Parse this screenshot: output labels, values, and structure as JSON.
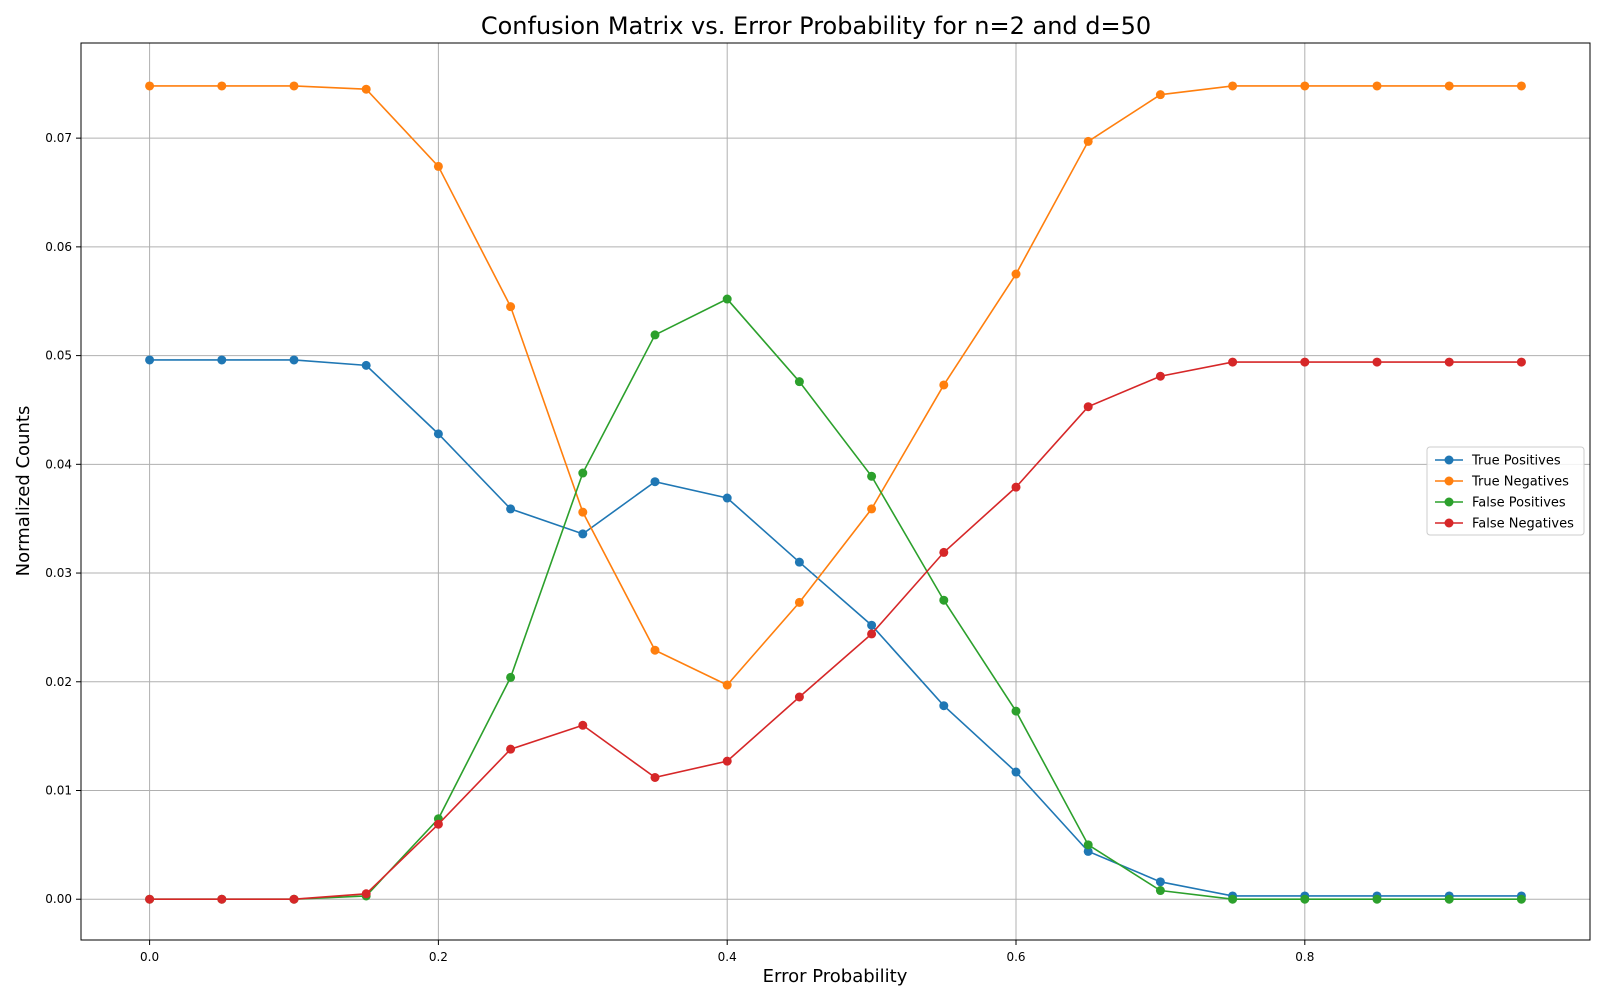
{
  "chart_data": {
    "type": "line",
    "title": "Confusion Matrix vs. Error Probability for n=2 and d=50",
    "xlabel": "Error Probability",
    "ylabel": "Normalized Counts",
    "xlim": [
      -0.0475,
      0.9975
    ],
    "ylim": [
      -0.00375,
      0.07875
    ],
    "xticks": [
      0.0,
      0.2,
      0.4,
      0.6,
      0.8
    ],
    "xtick_labels": [
      "0.0",
      "0.2",
      "0.4",
      "0.6",
      "0.8"
    ],
    "yticks": [
      0.0,
      0.01,
      0.02,
      0.03,
      0.04,
      0.05,
      0.06,
      0.07
    ],
    "ytick_labels": [
      "0.00",
      "0.01",
      "0.02",
      "0.03",
      "0.04",
      "0.05",
      "0.06",
      "0.07"
    ],
    "grid": true,
    "legend_position": "center-right",
    "x": [
      0.0,
      0.05,
      0.1,
      0.15,
      0.2,
      0.25,
      0.3,
      0.35,
      0.4,
      0.45,
      0.5,
      0.55,
      0.6,
      0.65,
      0.7,
      0.75,
      0.8,
      0.85,
      0.9,
      0.95
    ],
    "series": [
      {
        "name": "True Positives",
        "color": "#1f77b4",
        "values": [
          0.0496,
          0.0496,
          0.0496,
          0.0491,
          0.0428,
          0.0359,
          0.0336,
          0.0384,
          0.0369,
          0.031,
          0.0252,
          0.0178,
          0.0117,
          0.0044,
          0.0016,
          0.0003,
          0.0003,
          0.0003,
          0.0003,
          0.0003
        ]
      },
      {
        "name": "True Negatives",
        "color": "#ff7f0e",
        "values": [
          0.0748,
          0.0748,
          0.0748,
          0.0745,
          0.0674,
          0.0545,
          0.0356,
          0.0229,
          0.0197,
          0.0273,
          0.0359,
          0.0473,
          0.0575,
          0.0697,
          0.074,
          0.0748,
          0.0748,
          0.0748,
          0.0748,
          0.0748
        ]
      },
      {
        "name": "False Positives",
        "color": "#2ca02c",
        "values": [
          0.0,
          0.0,
          0.0,
          0.0003,
          0.0074,
          0.0204,
          0.0392,
          0.0519,
          0.0552,
          0.0476,
          0.0389,
          0.0275,
          0.0173,
          0.005,
          0.0008,
          0.0,
          0.0,
          0.0,
          0.0,
          0.0
        ]
      },
      {
        "name": "False Negatives",
        "color": "#d62728",
        "values": [
          0.0,
          0.0,
          0.0,
          0.0005,
          0.0069,
          0.0138,
          0.016,
          0.0112,
          0.0127,
          0.0186,
          0.0244,
          0.0319,
          0.0379,
          0.0453,
          0.0481,
          0.0494,
          0.0494,
          0.0494,
          0.0494,
          0.0494
        ]
      }
    ]
  }
}
